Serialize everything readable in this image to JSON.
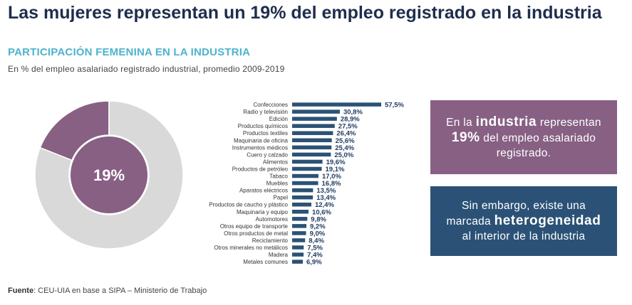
{
  "header": {
    "title": "Las mujeres representan un 19% del empleo registrado en la industria",
    "subtitle": "PARTICIPACIÓN FEMENINA EN LA INDUSTRIA",
    "caption": "En % del empleo asalariado registrado industrial, promedio 2009-2019"
  },
  "colors": {
    "donut_share": "#876084",
    "donut_rest": "#d9d9d9",
    "bars": "#2b5276",
    "title": "#1f2d4d",
    "subtitle": "#4db3cf"
  },
  "chart_data": [
    {
      "type": "pie",
      "center_label": "19%",
      "slices": [
        {
          "value": 19
        },
        {
          "value": 81
        }
      ]
    },
    {
      "type": "bar",
      "orientation": "horizontal",
      "categories": [
        "Confecciones",
        "Radio y televisión",
        "Edición",
        "Productos químicos",
        "Productos textiles",
        "Maquinaria de oficina",
        "Instrumentos médicos",
        "Cuero y calzado",
        "Alimentos",
        "Productos de petróleo",
        "Tabaco",
        "Muebles",
        "Aparatos eléctricos",
        "Papel",
        "Productos de caucho y plástico",
        "Maquinaria y equipo",
        "Automotores",
        "Otros equipo de transporte",
        "Otros productos de metal",
        "Reciclamiento",
        "Otros minerales no metálicos",
        "Madera",
        "Metales comunes"
      ],
      "values": [
        57.5,
        30.8,
        28.9,
        27.5,
        26.4,
        25.6,
        25.4,
        25.0,
        19.6,
        19.1,
        17.0,
        16.8,
        13.5,
        13.4,
        12.4,
        10.6,
        9.8,
        9.2,
        9.0,
        8.4,
        7.5,
        7.4,
        6.9
      ],
      "labels": [
        "57,5%",
        "30,8%",
        "28,9%",
        "27,5%",
        "26,4%",
        "25,6%",
        "25,4%",
        "25,0%",
        "19,6%",
        "19,1%",
        "17,0%",
        "16,8%",
        "13,5%",
        "13,4%",
        "12,4%",
        "10,6%",
        "9,8%",
        "9,2%",
        "9,0%",
        "8,4%",
        "7,5%",
        "7,4%",
        "6,9%"
      ]
    }
  ],
  "callouts": {
    "box1": {
      "p1": "En la ",
      "b1": "industria",
      "p2": " representan ",
      "b2": "19%",
      "p3": " del empleo asalariado registrado."
    },
    "box2": {
      "p1": "Sin embargo, existe una marcada ",
      "b1": "heterogeneidad",
      "p2": " al interior de la industria"
    }
  },
  "footer": {
    "source_label": "Fuente",
    "source_text": ": CEU-UIA en base a SIPA – Ministerio de Trabajo"
  }
}
